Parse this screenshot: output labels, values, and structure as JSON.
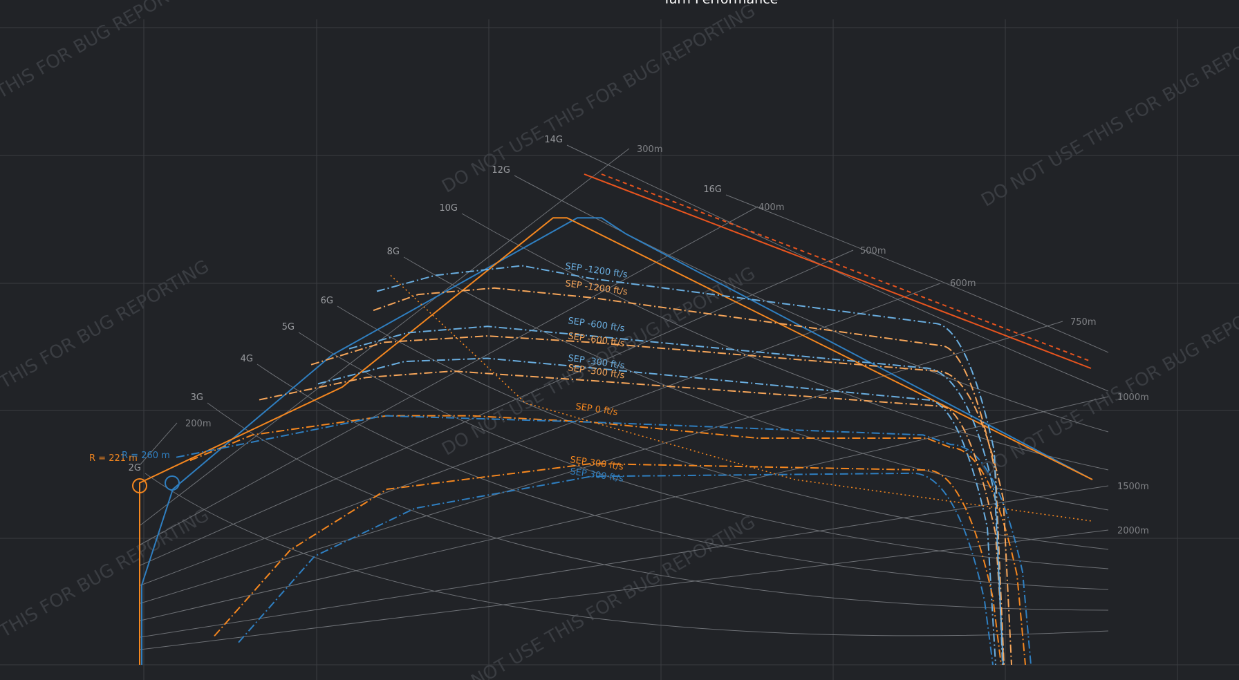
{
  "chart_data": {
    "type": "line",
    "title": "Turn Performance",
    "colors": {
      "background": "#212327",
      "grid": "#3a3d42",
      "guide": "#6e7176",
      "series_a": "#2f7fc1",
      "series_b": "#f5871f",
      "series_a_light": "#6aaee0",
      "series_b_light": "#f7a65a",
      "max_envelope": "#e8541e",
      "marker_a": "#2f7fc1",
      "marker_b": "#f5871f"
    },
    "g_labels": [
      "2G",
      "3G",
      "4G",
      "5G",
      "6G",
      "8G",
      "10G",
      "12G",
      "14G",
      "16G"
    ],
    "radius_labels": [
      "200m",
      "300m",
      "400m",
      "500m",
      "600m",
      "750m",
      "1000m",
      "1500m",
      "2000m"
    ],
    "corner_labels": [
      {
        "text": "R = 221 m",
        "color": "#f5871f"
      },
      {
        "text": "R = 260 m",
        "color": "#2f7fc1"
      }
    ],
    "sep_labels": [
      {
        "text": "SEP -1200 ft/s",
        "color": "#6aaee0"
      },
      {
        "text": "SEP -1200 ft/s",
        "color": "#f7a65a"
      },
      {
        "text": "SEP -600 ft/s",
        "color": "#6aaee0"
      },
      {
        "text": "SEP -600 ft/s",
        "color": "#f7a65a"
      },
      {
        "text": "SEP -300 ft/s",
        "color": "#6aaee0"
      },
      {
        "text": "SEP -300 ft/s",
        "color": "#f7a65a"
      },
      {
        "text": "SEP 0 ft/s",
        "color": "#f5871f"
      },
      {
        "text": "SEP 300 ft/s",
        "color": "#f5871f"
      },
      {
        "text": "SEP 300 ft/s",
        "color": "#2f7fc1"
      }
    ],
    "watermark": "DO NOT USE THIS FOR BUG REPORTING",
    "series": [
      {
        "key": "a",
        "kind": "envelope",
        "x": [
          205,
          205,
          250,
          480,
          835,
          870,
          905,
          1580
        ],
        "y": [
          0,
          25,
          55,
          97,
          140,
          140,
          135,
          58
        ]
      },
      {
        "key": "b",
        "kind": "envelope",
        "x": [
          202,
          202,
          495,
          800,
          820,
          1580
        ],
        "y": [
          0,
          57,
          87,
          140,
          140,
          58
        ]
      },
      {
        "key": "b",
        "kind": "sep",
        "level": "0",
        "x": [
          275,
          365,
          560,
          680,
          855,
          1095,
          1340,
          1375
        ],
        "y": [
          64,
          72,
          78,
          78,
          76,
          71,
          71,
          68
        ]
      },
      {
        "key": "a",
        "kind": "sep",
        "level": "0",
        "x": [
          255,
          555,
          855,
          1335,
          1375
        ],
        "y": [
          65,
          78,
          76,
          72,
          69
        ]
      },
      {
        "key": "b",
        "kind": "sep",
        "level": "-300",
        "x": [
          375,
          530,
          655,
          855,
          1360
        ],
        "y": [
          83,
          90,
          92,
          89,
          81
        ]
      },
      {
        "key": "a",
        "kind": "sep",
        "level": "-300",
        "x": [
          460,
          585,
          705,
          855,
          1340
        ],
        "y": [
          88,
          95,
          96,
          93,
          83
        ]
      },
      {
        "key": "b",
        "kind": "sep",
        "level": "-600",
        "x": [
          450,
          555,
          705,
          855,
          1355
        ],
        "y": [
          94,
          101,
          103,
          101,
          92
        ]
      },
      {
        "key": "a",
        "kind": "sep",
        "level": "-600",
        "x": [
          505,
          590,
          705,
          855,
          1335
        ],
        "y": [
          99,
          104,
          106,
          103,
          93
        ]
      },
      {
        "key": "b",
        "kind": "sep",
        "level": "-1200",
        "x": [
          540,
          605,
          715,
          855,
          1360
        ],
        "y": [
          111,
          116,
          118,
          115,
          100
        ]
      },
      {
        "key": "a",
        "kind": "sep",
        "level": "-1200",
        "x": [
          545,
          630,
          755,
          855,
          1350
        ],
        "y": [
          117,
          122,
          125,
          121,
          107
        ]
      },
      {
        "key": "b",
        "kind": "sep",
        "level": "300",
        "x": [
          310,
          420,
          560,
          855,
          1340
        ],
        "y": [
          9,
          36,
          55,
          63,
          61
        ]
      },
      {
        "key": "a",
        "kind": "sep",
        "level": "300",
        "x": [
          345,
          455,
          600,
          855,
          1320
        ],
        "y": [
          7,
          34,
          49,
          59,
          60
        ]
      },
      {
        "key": "b",
        "kind": "corner",
        "x": [
          565,
          760,
          1150,
          1580
        ],
        "y": [
          122,
          82,
          58,
          45
        ]
      }
    ],
    "grid": true
  }
}
